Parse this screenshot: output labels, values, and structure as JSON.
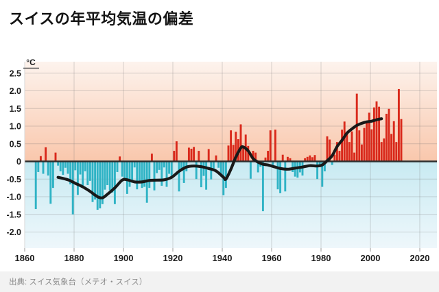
{
  "title": "スイスの年平均気温の偏差",
  "source": "出典: スイス気象台（メテオ・スイス）",
  "y_axis": {
    "unit": "°C",
    "tick_values": [
      2.5,
      2.0,
      1.5,
      1.0,
      0.5,
      0,
      -0.5,
      -1.0,
      -1.5,
      -2.0
    ]
  },
  "x_axis": {
    "tick_values": [
      1860,
      1880,
      1900,
      1920,
      1940,
      1960,
      1980,
      2000,
      2020
    ]
  },
  "colors": {
    "bar_positive": "#d9291b",
    "bar_negative": "#2fb3c5",
    "trend_line": "#191919",
    "zero_line": "#2e2e2e",
    "bg_warm_top": "#fdf3ed",
    "bg_warm_bottom": "#f9c7ac",
    "bg_cool_top": "#c8eaf2",
    "bg_cool_bottom": "#eef7fb",
    "grid": "rgba(110,110,110,0.28)",
    "tick_mark": "#9a9a9a",
    "axis_text": "#1a1a1a",
    "footer_bg": "#f2f2f2",
    "source_text": "#8c8c8c",
    "unit_underline": "#555555"
  },
  "chart_data": {
    "type": "bar",
    "title": "スイスの年平均気温の偏差",
    "ylabel": "°C",
    "xlim": [
      1860,
      2027
    ],
    "ylim": [
      -2.45,
      2.8
    ],
    "grid": true,
    "legend": false,
    "bars": {
      "start_year": 1864,
      "end_year": 2012,
      "values": [
        -1.35,
        -0.3,
        0.15,
        -0.35,
        0.4,
        -0.4,
        -1.2,
        -0.75,
        0.25,
        -0.12,
        -0.28,
        -0.38,
        -0.18,
        -0.35,
        -0.65,
        -1.5,
        -0.25,
        -0.95,
        -0.37,
        -0.7,
        -0.28,
        -0.67,
        -0.55,
        -1.15,
        -1.08,
        -1.37,
        -1.33,
        -1.21,
        -0.8,
        -0.67,
        -0.82,
        -0.88,
        -1.21,
        -0.3,
        0.14,
        -0.43,
        -0.5,
        -0.92,
        -0.72,
        -0.6,
        -0.17,
        -0.79,
        -0.6,
        -0.75,
        -0.72,
        -1.17,
        -0.75,
        0.22,
        -0.82,
        -0.33,
        -0.24,
        -0.69,
        -0.17,
        -0.72,
        -0.35,
        -0.46,
        0.3,
        0.57,
        -0.85,
        -0.25,
        -0.61,
        -0.28,
        0.39,
        0.36,
        0.41,
        -0.5,
        0.3,
        -0.73,
        -0.41,
        -0.8,
        0.35,
        -0.51,
        -0.28,
        0.17,
        -0.18,
        -0.35,
        -0.96,
        -0.75,
        0.45,
        0.88,
        0.47,
        0.84,
        0.63,
        1.05,
        0.38,
        0.76,
        0.44,
        -0.49,
        0.3,
        0.25,
        -0.31,
        -0.15,
        -1.41,
        0.11,
        0.3,
        0.88,
        -0.1,
        0.9,
        -0.79,
        -0.9,
        0.19,
        -0.85,
        0.13,
        0.09,
        -0.3,
        -0.43,
        -0.46,
        -0.31,
        -0.4,
        0.09,
        0.13,
        0.17,
        0.12,
        0.18,
        -0.5,
        -0.11,
        -0.72,
        -0.28,
        0.71,
        0.62,
        -0.1,
        0.19,
        0.55,
        0.3,
        0.9,
        1.13,
        0.8,
        0.55,
        0.85,
        0.25,
        1.92,
        0.88,
        0.48,
        0.95,
        1.15,
        1.38,
        0.91,
        1.53,
        1.7,
        1.55,
        0.55,
        0.65,
        1.35,
        1.49,
        0.78,
        1.14,
        0.55,
        2.05,
        1.2
      ]
    },
    "trend": {
      "points": [
        [
          1873,
          -0.45
        ],
        [
          1877,
          -0.52
        ],
        [
          1880,
          -0.62
        ],
        [
          1883,
          -0.72
        ],
        [
          1886,
          -0.85
        ],
        [
          1889,
          -1.0
        ],
        [
          1891,
          -1.03
        ],
        [
          1893,
          -0.93
        ],
        [
          1896,
          -0.75
        ],
        [
          1899,
          -0.53
        ],
        [
          1901,
          -0.52
        ],
        [
          1904,
          -0.58
        ],
        [
          1907,
          -0.58
        ],
        [
          1910,
          -0.54
        ],
        [
          1913,
          -0.53
        ],
        [
          1916,
          -0.52
        ],
        [
          1919,
          -0.45
        ],
        [
          1922,
          -0.28
        ],
        [
          1925,
          -0.16
        ],
        [
          1928,
          -0.13
        ],
        [
          1931,
          -0.15
        ],
        [
          1934,
          -0.2
        ],
        [
          1937,
          -0.27
        ],
        [
          1940,
          -0.45
        ],
        [
          1941,
          -0.5
        ],
        [
          1943,
          -0.22
        ],
        [
          1945,
          0.12
        ],
        [
          1947,
          0.38
        ],
        [
          1948,
          0.41
        ],
        [
          1950,
          0.3
        ],
        [
          1952,
          0.08
        ],
        [
          1954,
          -0.02
        ],
        [
          1956,
          -0.08
        ],
        [
          1958,
          -0.1
        ],
        [
          1960,
          -0.14
        ],
        [
          1963,
          -0.2
        ],
        [
          1966,
          -0.22
        ],
        [
          1969,
          -0.19
        ],
        [
          1972,
          -0.16
        ],
        [
          1975,
          -0.12
        ],
        [
          1978,
          -0.13
        ],
        [
          1980,
          -0.1
        ],
        [
          1982,
          0.02
        ],
        [
          1984,
          0.16
        ],
        [
          1986,
          0.42
        ],
        [
          1988,
          0.6
        ],
        [
          1990,
          0.8
        ],
        [
          1992,
          0.92
        ],
        [
          1994,
          1.02
        ],
        [
          1996,
          1.08
        ],
        [
          1998,
          1.12
        ],
        [
          2000,
          1.14
        ],
        [
          2002,
          1.18
        ],
        [
          2004,
          1.21
        ]
      ]
    }
  }
}
